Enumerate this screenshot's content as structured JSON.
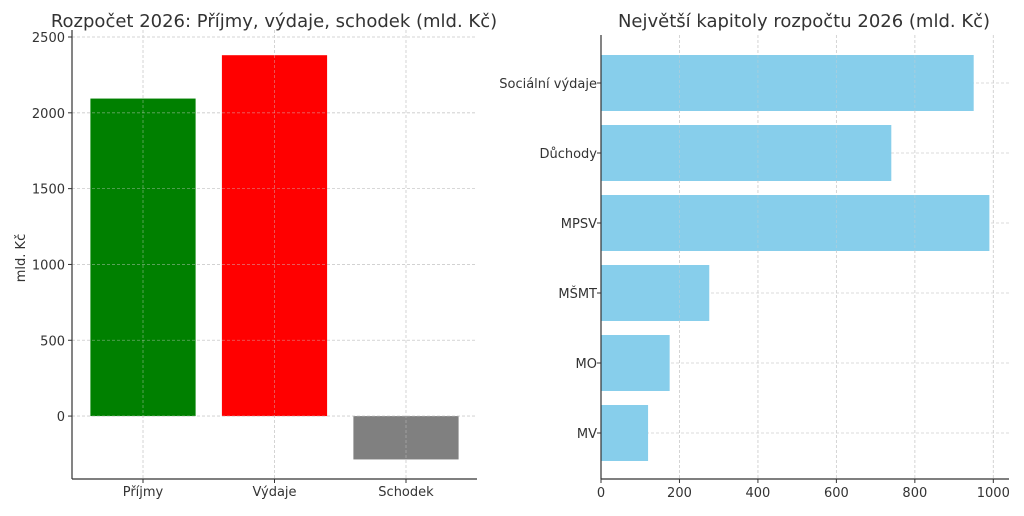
{
  "chart_data": [
    {
      "type": "bar",
      "title": "Rozpočet 2026: Příjmy, výdaje, schodek (mld. Kč)",
      "xlabel": "",
      "ylabel": "mld. Kč",
      "categories": [
        "Příjmy",
        "Výdaje",
        "Schodek"
      ],
      "values": [
        2094,
        2380,
        -286
      ],
      "colors": [
        "#008000",
        "#ff0000",
        "#808080"
      ],
      "ylim": [
        -415,
        2500
      ],
      "yticks": [
        0,
        500,
        1000,
        1500,
        2000,
        2500
      ],
      "ytick_labels": [
        "0",
        "500",
        "1000",
        "1500",
        "2000",
        "2500"
      ],
      "grid": true
    },
    {
      "type": "bar",
      "orientation": "horizontal",
      "title": "Největší kapitoly rozpočtu 2026 (mld. Kč)",
      "xlabel": "",
      "ylabel": "",
      "categories": [
        "Sociální výdaje",
        "Důchody",
        "MPSV",
        "MŠMT",
        "MO",
        "MV"
      ],
      "values": [
        950,
        740,
        990,
        276,
        175,
        120
      ],
      "color": "#87ceeb",
      "xlim": [
        0,
        1040
      ],
      "xticks": [
        0,
        200,
        400,
        600,
        800,
        1000
      ],
      "xtick_labels": [
        "0",
        "200",
        "400",
        "600",
        "800",
        "1000"
      ],
      "grid": true
    }
  ]
}
